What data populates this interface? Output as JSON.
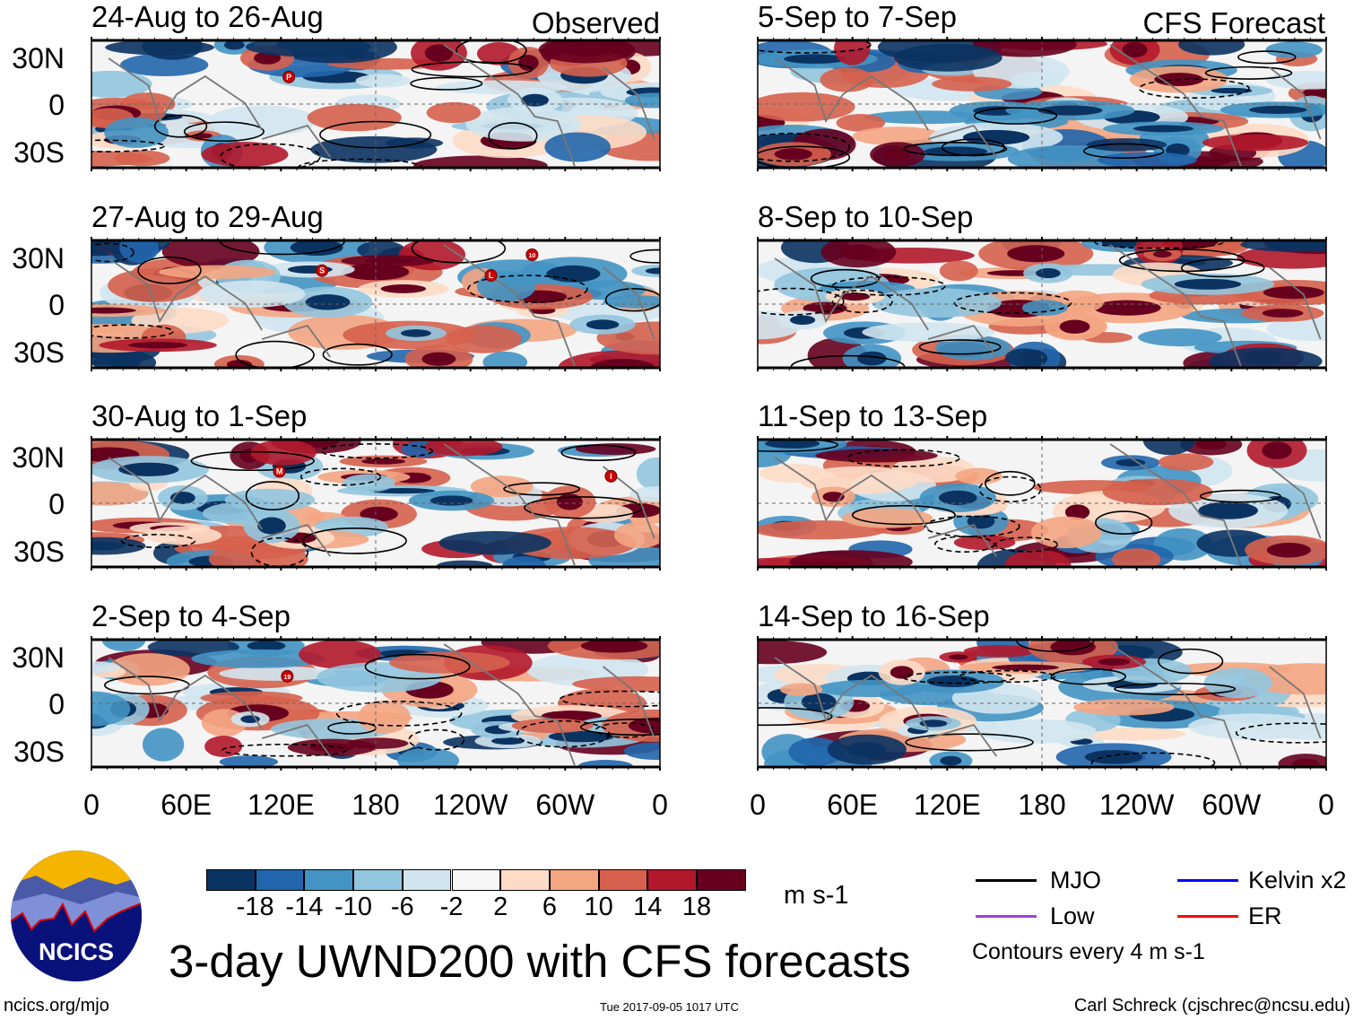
{
  "labels": {
    "observed": "Observed",
    "forecast": "CFS Forecast"
  },
  "panels": [
    {
      "title": "24-Aug to 26-Aug",
      "type": "observed",
      "storms": [
        {
          "id": "P",
          "lon": 125,
          "lat": 17
        }
      ]
    },
    {
      "title": "27-Aug to 29-Aug",
      "type": "observed",
      "storms": [
        {
          "id": "S",
          "lon": 146,
          "lat": 21
        },
        {
          "id": "L",
          "lon": 253,
          "lat": 18
        },
        {
          "id": "10",
          "lon": 279,
          "lat": 31
        }
      ]
    },
    {
      "title": "30-Aug to 1-Sep",
      "type": "observed",
      "storms": [
        {
          "id": "M",
          "lon": 119,
          "lat": 20
        },
        {
          "id": "I",
          "lon": 329,
          "lat": 17
        }
      ]
    },
    {
      "title": "2-Sep to 4-Sep",
      "type": "observed",
      "storms": [
        {
          "id": "19",
          "lon": 124,
          "lat": 17
        }
      ]
    },
    {
      "title": "5-Sep to 7-Sep",
      "type": "forecast",
      "storms": []
    },
    {
      "title": "8-Sep to 10-Sep",
      "type": "forecast",
      "storms": []
    },
    {
      "title": "11-Sep to 13-Sep",
      "type": "forecast",
      "storms": []
    },
    {
      "title": "14-Sep to 16-Sep",
      "type": "forecast",
      "storms": []
    }
  ],
  "y_ticks": [
    "30N",
    "0",
    "30S"
  ],
  "x_ticks": [
    "0",
    "60E",
    "120E",
    "180",
    "120W",
    "60W",
    "0"
  ],
  "colorbar": {
    "labels": [
      "-18",
      "-14",
      "-10",
      "-6",
      "-2",
      "2",
      "6",
      "10",
      "14",
      "18"
    ],
    "colors": [
      "#0b3362",
      "#2166ac",
      "#4393c3",
      "#92c5de",
      "#d1e5f0",
      "#f7f7f7",
      "#fddbc7",
      "#f4a582",
      "#d6604d",
      "#b2182b",
      "#67001f"
    ],
    "units": "m s-1"
  },
  "legend": {
    "items": [
      {
        "label": "MJO",
        "color": "#000000"
      },
      {
        "label": "Kelvin x2",
        "color": "#0000ff"
      },
      {
        "label": "Low",
        "color": "#a040e0"
      },
      {
        "label": "ER",
        "color": "#ff0000"
      }
    ],
    "note": "Contours every 4 m s-1"
  },
  "title": "3-day UWND200 with CFS forecasts",
  "logo_text": "NCICS",
  "footer": {
    "left": "ncics.org/mjo",
    "center": "Tue 2017-09-05 1017 UTC",
    "right": "Carl Schreck (cjschrec@ncsu.edu)"
  },
  "chart_data": {
    "type": "heatmap",
    "variable": "3-day UWND200 anomaly",
    "units": "m s-1",
    "xlim": [
      0,
      360
    ],
    "ylim": [
      -40,
      40
    ],
    "x_ticks": [
      "0",
      "60E",
      "120E",
      "180",
      "120W",
      "60W",
      "0"
    ],
    "y_ticks": [
      "30N",
      "0",
      "30S"
    ],
    "color_levels": [
      -18,
      -14,
      -10,
      -6,
      -2,
      2,
      6,
      10,
      14,
      18
    ],
    "contour_interval": 4
  }
}
